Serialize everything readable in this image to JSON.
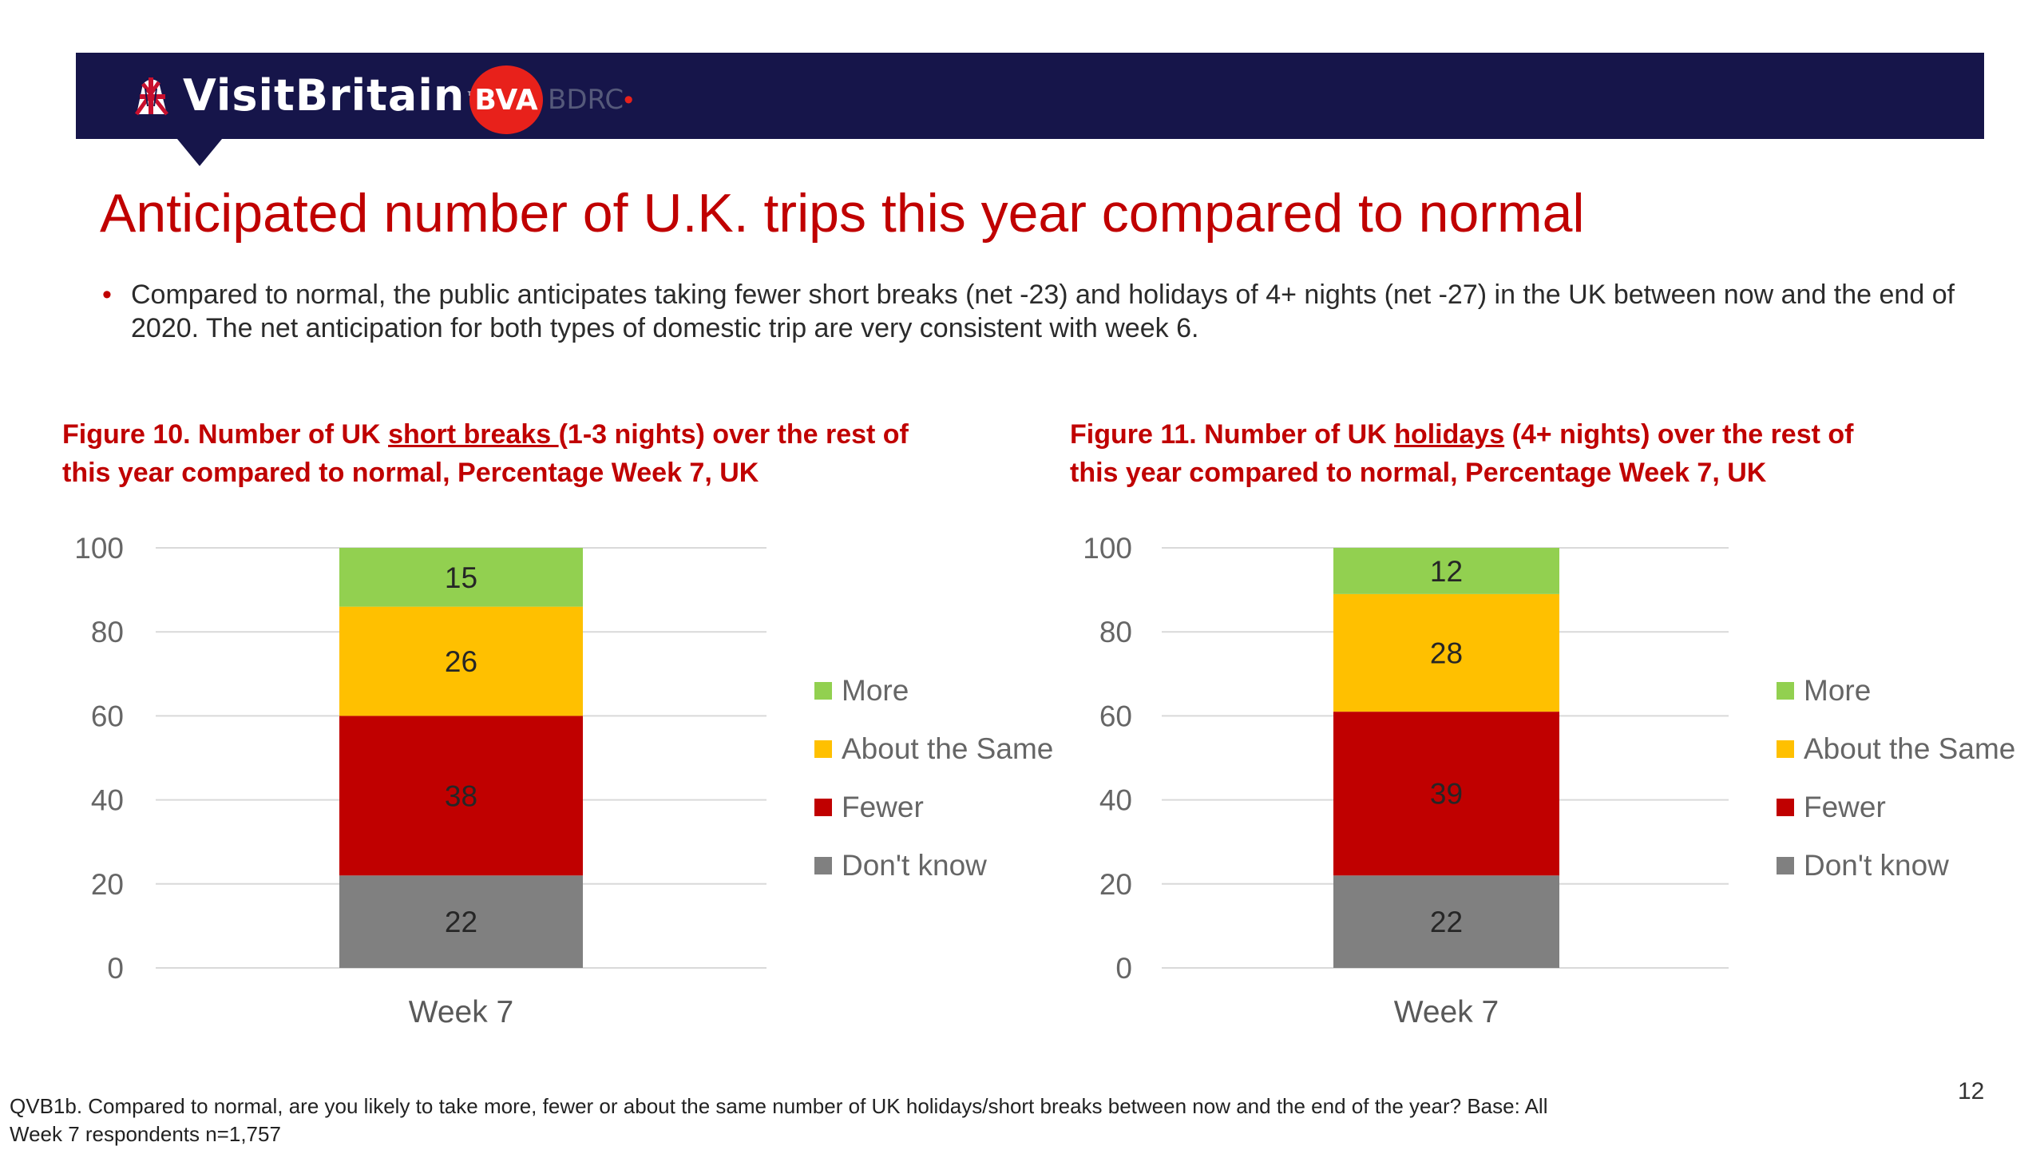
{
  "header": {
    "brand": "VisitBritain",
    "partner_logo_main": "BVA",
    "partner_logo_suffix": "BDRC",
    "bg_color": "#16154a"
  },
  "title": "Anticipated number of U.K. trips this year compared to normal",
  "bullet": "Compared to normal, the public anticipates taking fewer short breaks (net -23) and holidays of 4+ nights (net -27) in the UK between now and the end of 2020. The net anticipation for both types of domestic trip are very consistent with week 6.",
  "figures": [
    {
      "title_prefix": "Figure 10.  Number of UK ",
      "title_underlined": "short breaks ",
      "title_suffix": "(1-3 nights) over the rest of this year compared to normal, Percentage Week 7, UK"
    },
    {
      "title_prefix": "Figure 11.  Number of UK ",
      "title_underlined": "holidays",
      "title_suffix": " (4+ nights) over the rest of this year compared to normal, Percentage Week 7, UK"
    }
  ],
  "legend": [
    {
      "name": "More",
      "color": "#92d050"
    },
    {
      "name": "About the Same",
      "color": "#ffc000"
    },
    {
      "name": "Fewer",
      "color": "#c00000"
    },
    {
      "name": "Don't know",
      "color": "#808080"
    }
  ],
  "chart_data": [
    {
      "type": "bar",
      "stacked": true,
      "categories": [
        "Week 7"
      ],
      "ylim": [
        0,
        100
      ],
      "yticks": [
        0,
        20,
        40,
        60,
        80,
        100
      ],
      "grid": true,
      "legend_position": "right",
      "series": [
        {
          "name": "Don't know",
          "values": [
            22
          ],
          "color": "#808080"
        },
        {
          "name": "Fewer",
          "values": [
            38
          ],
          "color": "#c00000"
        },
        {
          "name": "About the Same",
          "values": [
            26
          ],
          "color": "#ffc000"
        },
        {
          "name": "More",
          "values": [
            15
          ],
          "color": "#92d050"
        }
      ]
    },
    {
      "type": "bar",
      "stacked": true,
      "categories": [
        "Week 7"
      ],
      "ylim": [
        0,
        100
      ],
      "yticks": [
        0,
        20,
        40,
        60,
        80,
        100
      ],
      "grid": true,
      "legend_position": "right",
      "series": [
        {
          "name": "Don't know",
          "values": [
            22
          ],
          "color": "#808080"
        },
        {
          "name": "Fewer",
          "values": [
            39
          ],
          "color": "#c00000"
        },
        {
          "name": "About the Same",
          "values": [
            28
          ],
          "color": "#ffc000"
        },
        {
          "name": "More",
          "values": [
            12
          ],
          "color": "#92d050"
        }
      ]
    }
  ],
  "footnote": "QVB1b. Compared to normal, are you likely to take more, fewer or about the same number of UK holidays/short breaks between now and the end of the year? Base: All Week 7 respondents n=1,757",
  "page_number": "12"
}
